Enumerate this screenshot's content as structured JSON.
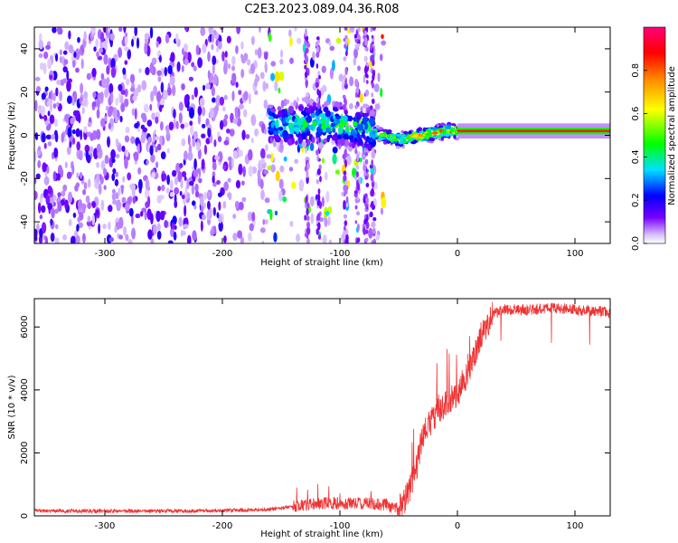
{
  "title": "C2E3.2023.089.04.36.R08",
  "chart_data": [
    {
      "type": "heatmap",
      "xlabel": "Height of straight line (km)",
      "ylabel": "Frequency (Hz)",
      "xlim": [
        -360,
        130
      ],
      "ylim": [
        -50,
        50
      ],
      "xticks": [
        -300,
        -200,
        -100,
        0,
        100
      ],
      "yticks": [
        -40,
        -20,
        0,
        20,
        40
      ],
      "colorbar": {
        "label": "Normalized spectral amplitude",
        "range": [
          0,
          1
        ],
        "ticks": [
          0.0,
          0.2,
          0.4,
          0.6,
          0.8
        ],
        "tick_labels": [
          "0.0",
          "0.2",
          "0.4",
          "0.6",
          "0.8"
        ],
        "colors": [
          "#ffffff",
          "#7700ff",
          "#0000ff",
          "#00e0ff",
          "#00ff00",
          "#ffff00",
          "#ff8800",
          "#ff0000",
          "#ff0077"
        ]
      },
      "regions": [
        {
          "x_range": [
            -360,
            -200
          ],
          "description": "dense scattered purple noise",
          "amplitude": 0.12
        },
        {
          "x_range": [
            -200,
            -160
          ],
          "description": "sparse purple noise",
          "amplitude": 0.08
        },
        {
          "x_range": [
            -160,
            -70
          ],
          "description": "tapering band of blue/green spots centered 0-10 Hz",
          "amplitude": 0.4
        },
        {
          "x_range": [
            -65,
            0
          ],
          "description": "narrow band near 0 Hz with red/yellow spots",
          "amplitude": 0.75
        },
        {
          "x_range": [
            0,
            130
          ],
          "description": "narrow red/green band at ~2 Hz",
          "amplitude": 0.8
        }
      ],
      "ridge": {
        "x": [
          -160,
          -140,
          -120,
          -100,
          -80,
          -65,
          -50,
          -30,
          -10,
          0,
          50,
          130
        ],
        "freq": [
          5,
          5,
          6,
          5,
          3,
          0,
          -2,
          0,
          2,
          2,
          2,
          2
        ],
        "amplitude": [
          0.35,
          0.4,
          0.42,
          0.45,
          0.4,
          0.55,
          0.6,
          0.75,
          0.8,
          0.8,
          0.82,
          0.8
        ]
      }
    },
    {
      "type": "line",
      "xlabel": "Height of straight line (km)",
      "ylabel": "SNR (10 * v/v)",
      "xlim": [
        -360,
        130
      ],
      "ylim": [
        0,
        6900
      ],
      "xticks": [
        -300,
        -200,
        -100,
        0,
        100
      ],
      "yticks": [
        0,
        2000,
        4000,
        6000
      ],
      "color": "#ee3333",
      "series": [
        {
          "name": "SNR",
          "x": [
            -360,
            -300,
            -250,
            -200,
            -160,
            -140,
            -120,
            -100,
            -80,
            -60,
            -50,
            -45,
            -40,
            -35,
            -30,
            -25,
            -20,
            -15,
            -10,
            -5,
            0,
            10,
            20,
            25,
            30,
            40,
            60,
            80,
            100,
            120,
            130
          ],
          "y": [
            160,
            150,
            150,
            170,
            200,
            300,
            400,
            400,
            400,
            350,
            200,
            500,
            900,
            1500,
            2500,
            2900,
            3100,
            3400,
            3600,
            3700,
            3900,
            4600,
            5700,
            6100,
            6400,
            6550,
            6550,
            6600,
            6550,
            6500,
            6450
          ]
        }
      ]
    }
  ]
}
